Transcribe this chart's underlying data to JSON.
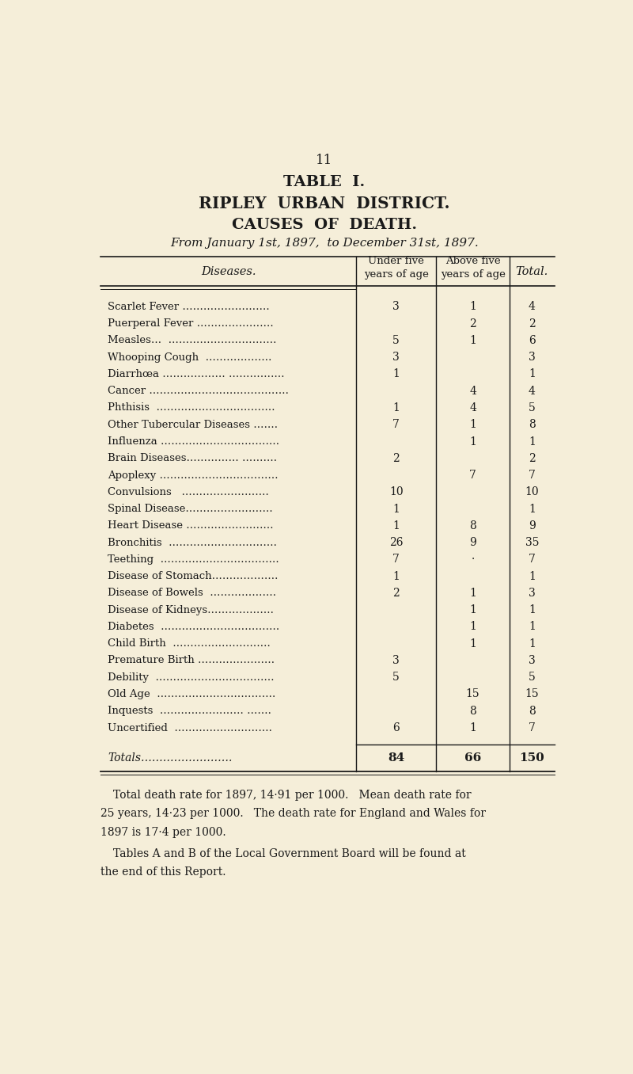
{
  "page_number": "11",
  "title_line1": "TABLE  I.",
  "title_line2": "RIPLEY  URBAN  DISTRICT.",
  "title_line3": "CAUSES  OF  DEATH.",
  "title_line4": "From January 1st, 1897,  to December 31st, 1897.",
  "rows": [
    [
      "Scarlet Fever …………………….",
      "3",
      "1",
      "4"
    ],
    [
      "Puerperal Fever ………………….",
      "",
      "2",
      "2"
    ],
    [
      "Measles…  ………………………….",
      "5",
      "1",
      "6"
    ],
    [
      "Whooping Cough  ……………….",
      "3",
      "",
      "3"
    ],
    [
      "Diarrhœa ……………… …………….",
      "1",
      "",
      "1"
    ],
    [
      "Cancer ………………………………….",
      "",
      "4",
      "4"
    ],
    [
      "Phthisis  …………………………….",
      "1",
      "4",
      "5"
    ],
    [
      "Other Tubercular Diseases …….",
      "7",
      "1",
      "8"
    ],
    [
      "Influenza …………………………….",
      "",
      "1",
      "1"
    ],
    [
      "Brain Diseases…………… ……….",
      "2",
      "",
      "2"
    ],
    [
      "Apoplexy …………………………….",
      "",
      "7",
      "7"
    ],
    [
      "Convulsions   …………………….",
      "10",
      "",
      "10"
    ],
    [
      "Spinal Disease…………………….",
      "1",
      "",
      "1"
    ],
    [
      "Heart Disease …………………….",
      "1",
      "8",
      "9"
    ],
    [
      "Bronchitis  ………………………….",
      "26",
      "9",
      "35"
    ],
    [
      "Teething  …………………………….",
      "7",
      "·",
      "7"
    ],
    [
      "Disease of Stomach……………….",
      "1",
      "",
      "1"
    ],
    [
      "Disease of Bowels  ……………….",
      "2",
      "1",
      "3"
    ],
    [
      "Disease of Kidneys……………….",
      "",
      "1",
      "1"
    ],
    [
      "Diabetes  …………………………….",
      "",
      "1",
      "1"
    ],
    [
      "Child Birth  ……………………….",
      "",
      "1",
      "1"
    ],
    [
      "Premature Birth ………………….",
      "3",
      "",
      "3"
    ],
    [
      "Debility  …………………………….",
      "5",
      "",
      "5"
    ],
    [
      "Old Age  …………………………….",
      "",
      "15",
      "15"
    ],
    [
      "Inquests  …………………… …….",
      "",
      "8",
      "8"
    ],
    [
      "Uncertified  ……………………….",
      "6",
      "1",
      "7"
    ]
  ],
  "totals_label": "Totals…………………….",
  "totals": [
    "84",
    "66",
    "150"
  ],
  "footnote1": "Total death rate for 1897, 14·91 per 1000.   Mean death rate for",
  "footnote2": "25 years, 14·23 per 1000.   The death rate for England and Wales for",
  "footnote3": "1897 is 17·4 per 1000.",
  "footnote4": "Tables A and B of the Local Government Board will be found at",
  "footnote5": "the end of this Report.",
  "bg_color": "#f5eed9",
  "text_color": "#1a1a1a"
}
